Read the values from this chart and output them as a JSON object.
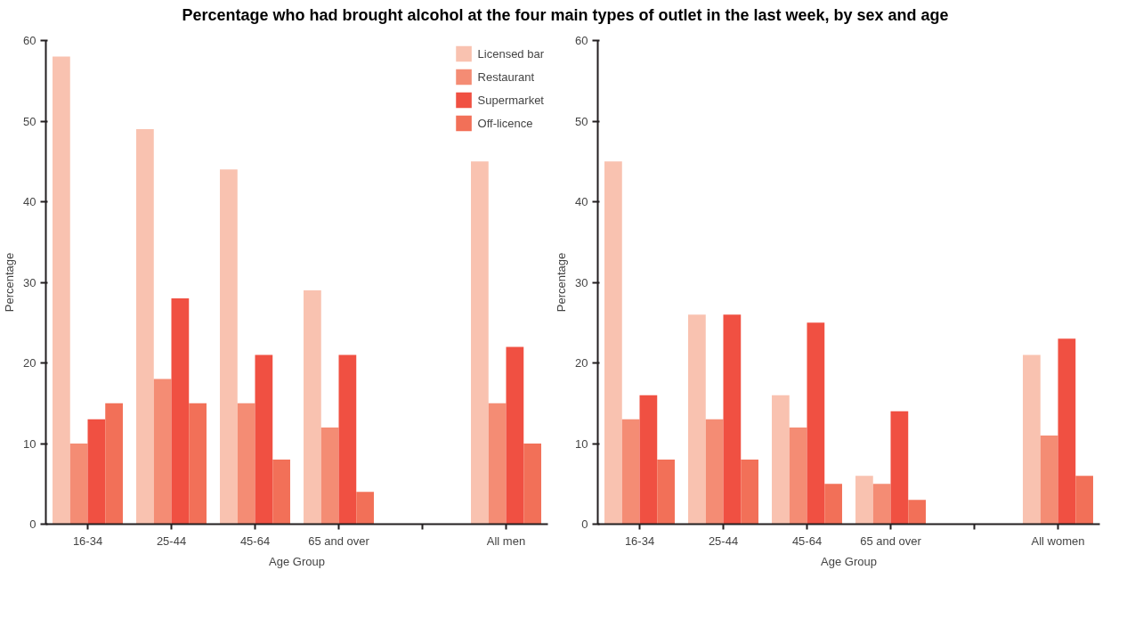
{
  "chart_data": [
    {
      "type": "bar",
      "title": "Percentage who had brought alcohol at the four main types of outlet in the last week, by sex and age",
      "xlabel": "Age Group",
      "ylabel": "Percentage",
      "categories": [
        "16-34",
        "25-44",
        "45-64",
        "65 and over",
        null,
        "All men"
      ],
      "ylim": [
        0,
        60
      ],
      "yticks": [
        0,
        10,
        20,
        30,
        40,
        50,
        60
      ],
      "grid": false,
      "legend": "top",
      "series": [
        {
          "name": "Licensed bar",
          "color": "#f9c2b0",
          "values": [
            58,
            49,
            44,
            29,
            null,
            45
          ]
        },
        {
          "name": "Restaurant",
          "color": "#f48c74",
          "values": [
            10,
            18,
            15,
            12,
            null,
            15
          ]
        },
        {
          "name": "Supermarket",
          "color": "#f05042",
          "values": [
            13,
            28,
            21,
            21,
            null,
            22
          ]
        },
        {
          "name": "Off-licence",
          "color": "#f27058",
          "values": [
            15,
            15,
            8,
            4,
            null,
            10
          ]
        }
      ]
    },
    {
      "type": "bar",
      "xlabel": "Age Group",
      "ylabel": "Percentage",
      "categories": [
        "16-34",
        "25-44",
        "45-64",
        "65 and over",
        null,
        "All women"
      ],
      "ylim": [
        0,
        60
      ],
      "yticks": [
        0,
        10,
        20,
        30,
        40,
        50,
        60
      ],
      "grid": false,
      "series": [
        {
          "color": "#f9c2b0",
          "values": [
            45,
            26,
            16,
            6,
            null,
            21
          ]
        },
        {
          "color": "#f48c74",
          "values": [
            13,
            13,
            12,
            5,
            null,
            11
          ]
        },
        {
          "color": "#f05042",
          "values": [
            16,
            26,
            25,
            14,
            null,
            23
          ]
        },
        {
          "color": "#f27058",
          "values": [
            8,
            8,
            5,
            3,
            null,
            6
          ]
        }
      ]
    }
  ]
}
